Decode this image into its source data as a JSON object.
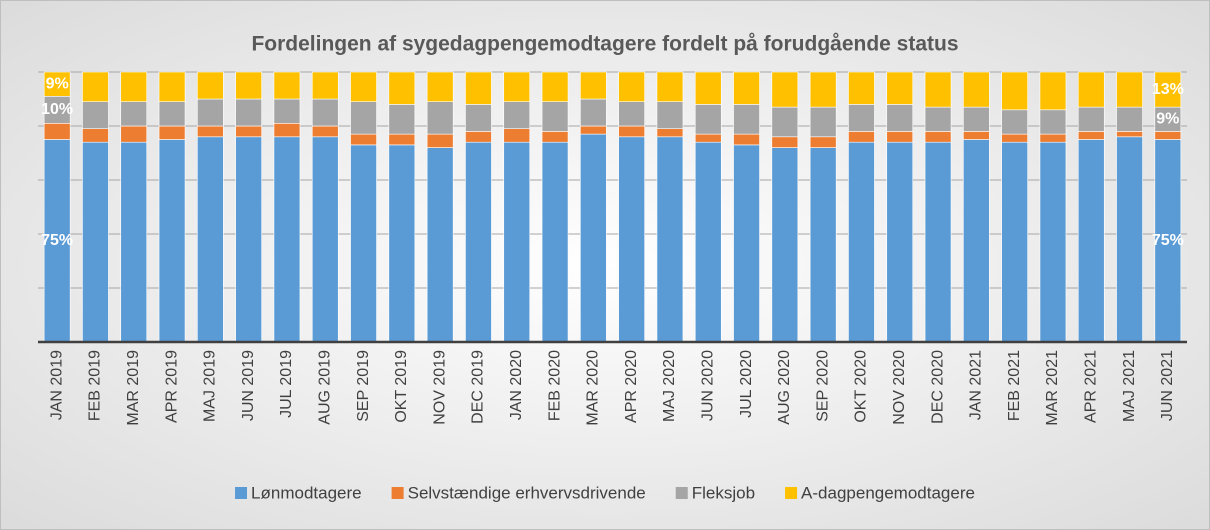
{
  "chart_data": {
    "type": "bar",
    "stacked": true,
    "title": "Fordelingen af sygedagpengemodtagere fordelt på forudgående status",
    "categories": [
      "JAN 2019",
      "FEB 2019",
      "MAR 2019",
      "APR 2019",
      "MAJ 2019",
      "JUN 2019",
      "JUL 2019",
      "AUG 2019",
      "SEP 2019",
      "OKT 2019",
      "NOV 2019",
      "DEC 2019",
      "JAN 2020",
      "FEB 2020",
      "MAR 2020",
      "APR 2020",
      "MAJ 2020",
      "JUN 2020",
      "JUL 2020",
      "AUG 2020",
      "SEP 2020",
      "OKT 2020",
      "NOV 2020",
      "DEC 2020",
      "JAN 2021",
      "FEB 2021",
      "MAR 2021",
      "APR 2021",
      "MAJ 2021",
      "JUN 2021"
    ],
    "series": [
      {
        "name": "Lønmodtagere",
        "color": "#5b9bd5",
        "values": [
          75,
          74,
          74,
          75,
          76,
          76,
          76,
          76,
          73,
          73,
          72,
          74,
          74,
          74,
          77,
          76,
          76,
          74,
          73,
          72,
          72,
          74,
          74,
          74,
          75,
          74,
          74,
          75,
          76,
          75
        ],
        "value_labels": [
          "75%",
          null,
          null,
          null,
          null,
          null,
          null,
          null,
          null,
          null,
          null,
          null,
          null,
          null,
          null,
          null,
          null,
          null,
          null,
          null,
          null,
          null,
          null,
          null,
          null,
          null,
          null,
          null,
          null,
          "75%"
        ]
      },
      {
        "name": "Selvstændige erhvervsdrivende",
        "color": "#ed7d31",
        "values": [
          6,
          5,
          6,
          5,
          4,
          4,
          5,
          4,
          4,
          4,
          5,
          4,
          5,
          4,
          3,
          4,
          3,
          3,
          4,
          4,
          4,
          4,
          4,
          4,
          3,
          3,
          3,
          3,
          2,
          3
        ]
      },
      {
        "name": "Fleksjob",
        "color": "#a5a5a5",
        "values": [
          10,
          10,
          9,
          9,
          10,
          10,
          9,
          10,
          12,
          11,
          12,
          10,
          10,
          11,
          10,
          9,
          10,
          11,
          11,
          11,
          11,
          10,
          10,
          9,
          9,
          9,
          9,
          9,
          9,
          9
        ],
        "value_labels": [
          "10%",
          null,
          null,
          null,
          null,
          null,
          null,
          null,
          null,
          null,
          null,
          null,
          null,
          null,
          null,
          null,
          null,
          null,
          null,
          null,
          null,
          null,
          null,
          null,
          null,
          null,
          null,
          null,
          null,
          "9%"
        ]
      },
      {
        "name": "A-dagpengemodtagere",
        "color": "#ffc000",
        "values": [
          9,
          11,
          11,
          11,
          10,
          10,
          10,
          10,
          11,
          12,
          11,
          12,
          11,
          11,
          10,
          11,
          11,
          12,
          12,
          13,
          13,
          12,
          12,
          13,
          13,
          14,
          14,
          13,
          13,
          13
        ],
        "value_labels": [
          "9%",
          null,
          null,
          null,
          null,
          null,
          null,
          null,
          null,
          null,
          null,
          null,
          null,
          null,
          null,
          null,
          null,
          null,
          null,
          null,
          null,
          null,
          null,
          null,
          null,
          null,
          null,
          null,
          null,
          "13%"
        ]
      }
    ],
    "ylim": [
      0,
      100
    ],
    "yticks": [
      0,
      20,
      40,
      60,
      80,
      100
    ],
    "grid": true
  }
}
